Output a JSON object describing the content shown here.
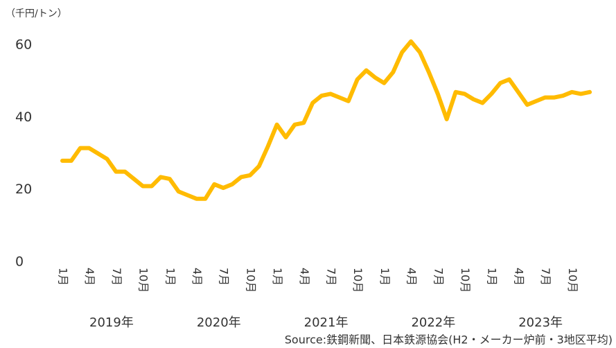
{
  "chart_data": {
    "type": "line",
    "unit_label": "（千円/トン）",
    "source": "Source:鉄鋼新聞、日本鉄源協会(H2・メーカー炉前・3地区平均)",
    "categories": [
      "1月",
      null,
      null,
      "4月",
      null,
      null,
      "7月",
      null,
      null,
      "10月",
      null,
      null,
      "1月",
      null,
      null,
      "4月",
      null,
      null,
      "7月",
      null,
      null,
      "10月",
      null,
      null,
      "1月",
      null,
      null,
      "4月",
      null,
      null,
      "7月",
      null,
      null,
      "10月",
      null,
      null,
      "1月",
      null,
      null,
      "4月",
      null,
      null,
      "7月",
      null,
      null,
      "10月",
      null,
      null,
      "1月",
      null,
      null,
      "4月",
      null,
      null,
      "7月",
      null,
      null,
      "10月",
      null,
      null
    ],
    "year_labels": [
      "2019年",
      "2020年",
      "2021年",
      "2022年",
      "2023年"
    ],
    "series": [
      {
        "color": "#ffbb00",
        "values": [
          28,
          28,
          31.5,
          31.5,
          30,
          28.5,
          25,
          25,
          23,
          21,
          21,
          23.5,
          23,
          19.5,
          18.5,
          17.5,
          17.5,
          21.5,
          20.5,
          21.5,
          23.5,
          24,
          26.5,
          32,
          38,
          34.5,
          38,
          38.5,
          44,
          46,
          46.5,
          45.5,
          44.5,
          50.5,
          53,
          51,
          49.5,
          52.5,
          58,
          61,
          58,
          52.5,
          46.5,
          39.5,
          47,
          46.5,
          45,
          44,
          46.5,
          49.5,
          50.5,
          47,
          43.5,
          44.5,
          45.5,
          45.5,
          46,
          47,
          46.5,
          47
        ]
      }
    ],
    "ylim": [
      0,
      60
    ],
    "yticks": [
      0,
      20,
      40,
      60
    ],
    "grid": false
  }
}
